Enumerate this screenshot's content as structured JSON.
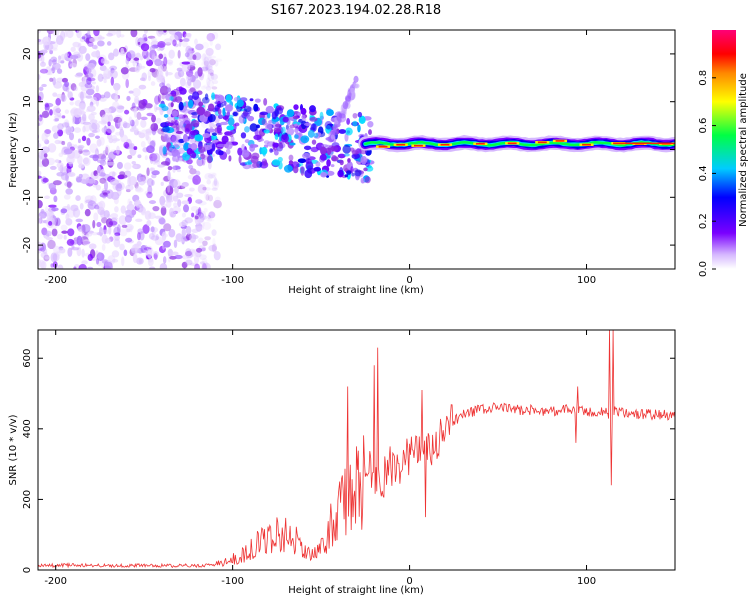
{
  "title": "S167.2023.194.02.28.R18",
  "chart_data": [
    {
      "type": "heatmap",
      "xlabel": "Height of straight line (km)",
      "ylabel": "Frequency (Hz)",
      "xlim": [
        -210,
        150
      ],
      "ylim": [
        -25,
        25
      ],
      "xticks": [
        -200,
        -100,
        0,
        100
      ],
      "yticks": [
        20,
        10,
        0,
        -10,
        -20
      ],
      "colorbar": {
        "label": "Normalized spectral amplitude",
        "range": [
          0,
          1
        ],
        "ticks": [
          0.0,
          0.2,
          0.4,
          0.6,
          0.8
        ],
        "tick_labels": [
          "0.0",
          "0.2",
          "0.4",
          "0.6",
          "0.8"
        ]
      },
      "features": [
        {
          "region": "noise",
          "x_range": [
            -210,
            -110
          ],
          "y_range": [
            -25,
            25
          ],
          "amplitude": 0.1
        },
        {
          "region": "transition",
          "x_range": [
            -140,
            -25
          ],
          "y_range": [
            -8,
            10
          ],
          "amplitude": 0.3
        },
        {
          "region": "streak",
          "x_range": [
            -45,
            -30
          ],
          "y_range": [
            2,
            14
          ],
          "amplitude": 0.15
        },
        {
          "region": "carrier",
          "x_range": [
            -25,
            150
          ],
          "y_range": [
            0,
            3
          ],
          "amplitude": 1.0
        }
      ]
    },
    {
      "type": "line",
      "xlabel": "Height of straight line (km)",
      "ylabel": "SNR (10 * v/v)",
      "xlim": [
        -210,
        150
      ],
      "ylim": [
        0,
        680
      ],
      "xticks": [
        -200,
        -100,
        0,
        100
      ],
      "yticks": [
        0,
        200,
        400,
        600
      ],
      "color": "#ee3333",
      "series": [
        {
          "x": [
            -210,
            -190,
            -170,
            -150,
            -130,
            -115,
            -105,
            -95,
            -85,
            -75,
            -65,
            -58,
            -50,
            -42,
            -35,
            -28,
            -22,
            -16,
            -12,
            -6,
            0,
            5,
            10,
            15,
            20,
            25,
            30,
            40,
            50,
            60,
            70,
            80,
            90,
            95,
            100,
            105,
            110,
            113,
            116,
            120,
            130,
            140,
            150
          ],
          "y": [
            12,
            14,
            12,
            13,
            12,
            13,
            20,
            40,
            75,
            105,
            95,
            40,
            60,
            150,
            200,
            240,
            290,
            240,
            290,
            300,
            330,
            340,
            330,
            350,
            390,
            420,
            440,
            455,
            460,
            455,
            452,
            450,
            455,
            450,
            448,
            445,
            450,
            440,
            450,
            445,
            442,
            440,
            438
          ]
        }
      ],
      "spikes": [
        {
          "x": -35,
          "y": 520
        },
        {
          "x": -32,
          "y": 150
        },
        {
          "x": -20,
          "y": 580
        },
        {
          "x": -18,
          "y": 630
        },
        {
          "x": 7,
          "y": 510
        },
        {
          "x": 9,
          "y": 150
        },
        {
          "x": 95,
          "y": 520
        },
        {
          "x": 94,
          "y": 360
        },
        {
          "x": 113,
          "y": 680
        },
        {
          "x": 115,
          "y": 680
        },
        {
          "x": 114,
          "y": 240
        }
      ]
    }
  ]
}
